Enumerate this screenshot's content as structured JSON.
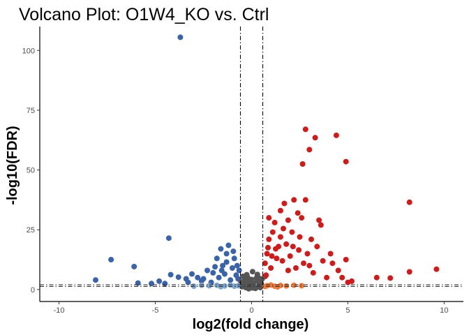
{
  "chart_data": {
    "type": "scatter",
    "title": "Volcano Plot: O1W4_KO vs. Ctrl",
    "xlabel": "log2(fold change)",
    "ylabel": "-log10(FDR)",
    "xlim": [
      -11,
      11
    ],
    "ylim": [
      -5,
      110
    ],
    "xticks": [
      -10,
      -5,
      0,
      5,
      10
    ],
    "yticks": [
      0,
      25,
      50,
      75,
      100
    ],
    "xtick_labels": [
      "-10",
      "-5",
      "0",
      "5",
      "10"
    ],
    "ytick_labels": [
      "0",
      "25",
      "50",
      "75",
      "100"
    ],
    "grid": false,
    "legend": "none",
    "vlines": [
      -0.58,
      0.58
    ],
    "hlines": [
      1.3,
      2.0
    ],
    "colors": {
      "down": "#3a63a8",
      "up": "#cc1d1d",
      "ns": "#555555",
      "down_fc_only": "#7fa6cc",
      "up_fc_only": "#f07a3a"
    },
    "series": [
      {
        "color_key": "down",
        "points": [
          [
            -3.7,
            105.5
          ],
          [
            -4.3,
            21.5
          ],
          [
            -7.3,
            12.5
          ],
          [
            -6.1,
            9.6
          ],
          [
            -8.1,
            4
          ],
          [
            -5.9,
            2.7
          ],
          [
            -4.8,
            3.5
          ],
          [
            -4.2,
            6.2
          ],
          [
            -3.8,
            5.2
          ],
          [
            -3.4,
            4.5
          ],
          [
            -3.1,
            6.5
          ],
          [
            -2.8,
            5
          ],
          [
            -2.6,
            3.6
          ],
          [
            -2.3,
            8
          ],
          [
            -2,
            7
          ],
          [
            -1.8,
            13
          ],
          [
            -1.6,
            17
          ],
          [
            -1.5,
            10
          ],
          [
            -1.3,
            15
          ],
          [
            -1.2,
            18.5
          ],
          [
            -1,
            9
          ],
          [
            -0.9,
            13
          ],
          [
            -0.8,
            6
          ],
          [
            -0.7,
            4.5
          ],
          [
            -0.65,
            8
          ],
          [
            -2.1,
            3
          ],
          [
            -3.3,
            3
          ],
          [
            -4.5,
            2.5
          ],
          [
            -5.2,
            2.5
          ],
          [
            -1.7,
            5
          ],
          [
            -1.4,
            6.5
          ],
          [
            -1.1,
            4
          ],
          [
            -0.75,
            10
          ],
          [
            -2.5,
            4.5
          ],
          [
            -1.9,
            9.5
          ],
          [
            -1.3,
            11.5
          ],
          [
            -0.95,
            16
          ],
          [
            -1.55,
            8
          ]
        ]
      },
      {
        "color_key": "up",
        "points": [
          [
            2.8,
            67
          ],
          [
            4.4,
            64.5
          ],
          [
            3.3,
            63.5
          ],
          [
            3,
            58.5
          ],
          [
            4.9,
            53.5
          ],
          [
            2.65,
            52.5
          ],
          [
            8.2,
            36.5
          ],
          [
            2.2,
            37.5
          ],
          [
            2.8,
            37.5
          ],
          [
            1.7,
            36
          ],
          [
            1.5,
            33
          ],
          [
            2.4,
            32
          ],
          [
            3.5,
            29
          ],
          [
            3.6,
            27
          ],
          [
            1.9,
            29
          ],
          [
            1.2,
            28
          ],
          [
            2.6,
            30
          ],
          [
            1.1,
            24
          ],
          [
            0.9,
            21
          ],
          [
            2.1,
            24
          ],
          [
            2.5,
            22
          ],
          [
            3.1,
            21
          ],
          [
            3.4,
            18
          ],
          [
            1.4,
            18
          ],
          [
            0.8,
            15
          ],
          [
            0.7,
            11
          ],
          [
            1,
            9
          ],
          [
            1.6,
            12
          ],
          [
            2,
            14
          ],
          [
            2.9,
            15
          ],
          [
            3.7,
            12
          ],
          [
            4.1,
            15
          ],
          [
            4.5,
            8
          ],
          [
            4.9,
            12.5
          ],
          [
            4.7,
            5
          ],
          [
            5,
            3
          ],
          [
            5.2,
            3.5
          ],
          [
            6.5,
            5
          ],
          [
            7.2,
            4.8
          ],
          [
            8.2,
            7.4
          ],
          [
            9.6,
            8.5
          ],
          [
            4.2,
            11
          ],
          [
            3.9,
            5
          ],
          [
            3.2,
            7
          ],
          [
            2.3,
            9
          ],
          [
            1.8,
            19
          ],
          [
            1.3,
            13
          ],
          [
            0.75,
            6
          ],
          [
            0.7,
            5.5
          ],
          [
            1.05,
            14
          ],
          [
            2.7,
            11
          ],
          [
            1.9,
            8
          ],
          [
            1.5,
            22
          ],
          [
            2.15,
            18
          ],
          [
            0.9,
            30
          ],
          [
            1.25,
            17
          ],
          [
            3,
            10
          ],
          [
            2.45,
            16.5
          ],
          [
            1.65,
            25.5
          ],
          [
            0.85,
            17.5
          ]
        ]
      },
      {
        "color_key": "ns",
        "points": [
          [
            -0.5,
            1.2
          ],
          [
            -0.4,
            2.2
          ],
          [
            -0.3,
            0.8
          ],
          [
            -0.2,
            3.1
          ],
          [
            -0.1,
            1.5
          ],
          [
            0,
            4.2
          ],
          [
            0.1,
            2.7
          ],
          [
            0.2,
            0.5
          ],
          [
            0.3,
            3.5
          ],
          [
            0.4,
            1.9
          ],
          [
            0.5,
            2.5
          ],
          [
            -0.45,
            5.5
          ],
          [
            -0.25,
            6.2
          ],
          [
            0.05,
            7.5
          ],
          [
            0.35,
            5
          ],
          [
            -0.15,
            0.3
          ],
          [
            0.15,
            1
          ],
          [
            0.45,
            0.8
          ],
          [
            -0.05,
            2.9
          ],
          [
            0.25,
            4.8
          ],
          [
            -0.35,
            3.8
          ],
          [
            0.55,
            4.5
          ],
          [
            -0.55,
            3.2
          ],
          [
            0.05,
            0.7
          ],
          [
            -0.2,
            5
          ],
          [
            0.3,
            6.3
          ]
        ]
      },
      {
        "color_key": "down_fc_only",
        "points": [
          [
            -2.2,
            1.6
          ],
          [
            -1.8,
            1.8
          ],
          [
            -1.4,
            1.5
          ],
          [
            -1.1,
            1.9
          ],
          [
            -0.9,
            1.4
          ],
          [
            -2.6,
            1.8
          ],
          [
            -1.6,
            1.2
          ],
          [
            -3,
            1.4
          ],
          [
            -0.7,
            1.6
          ]
        ]
      },
      {
        "color_key": "up_fc_only",
        "points": [
          [
            0.8,
            1.6
          ],
          [
            1,
            1.9
          ],
          [
            1.2,
            1.4
          ],
          [
            1.5,
            1.7
          ],
          [
            1.8,
            1.5
          ],
          [
            2.2,
            1.8
          ],
          [
            0.7,
            1.3
          ],
          [
            1.35,
            1.1
          ],
          [
            2.6,
            1.6
          ]
        ]
      }
    ]
  }
}
